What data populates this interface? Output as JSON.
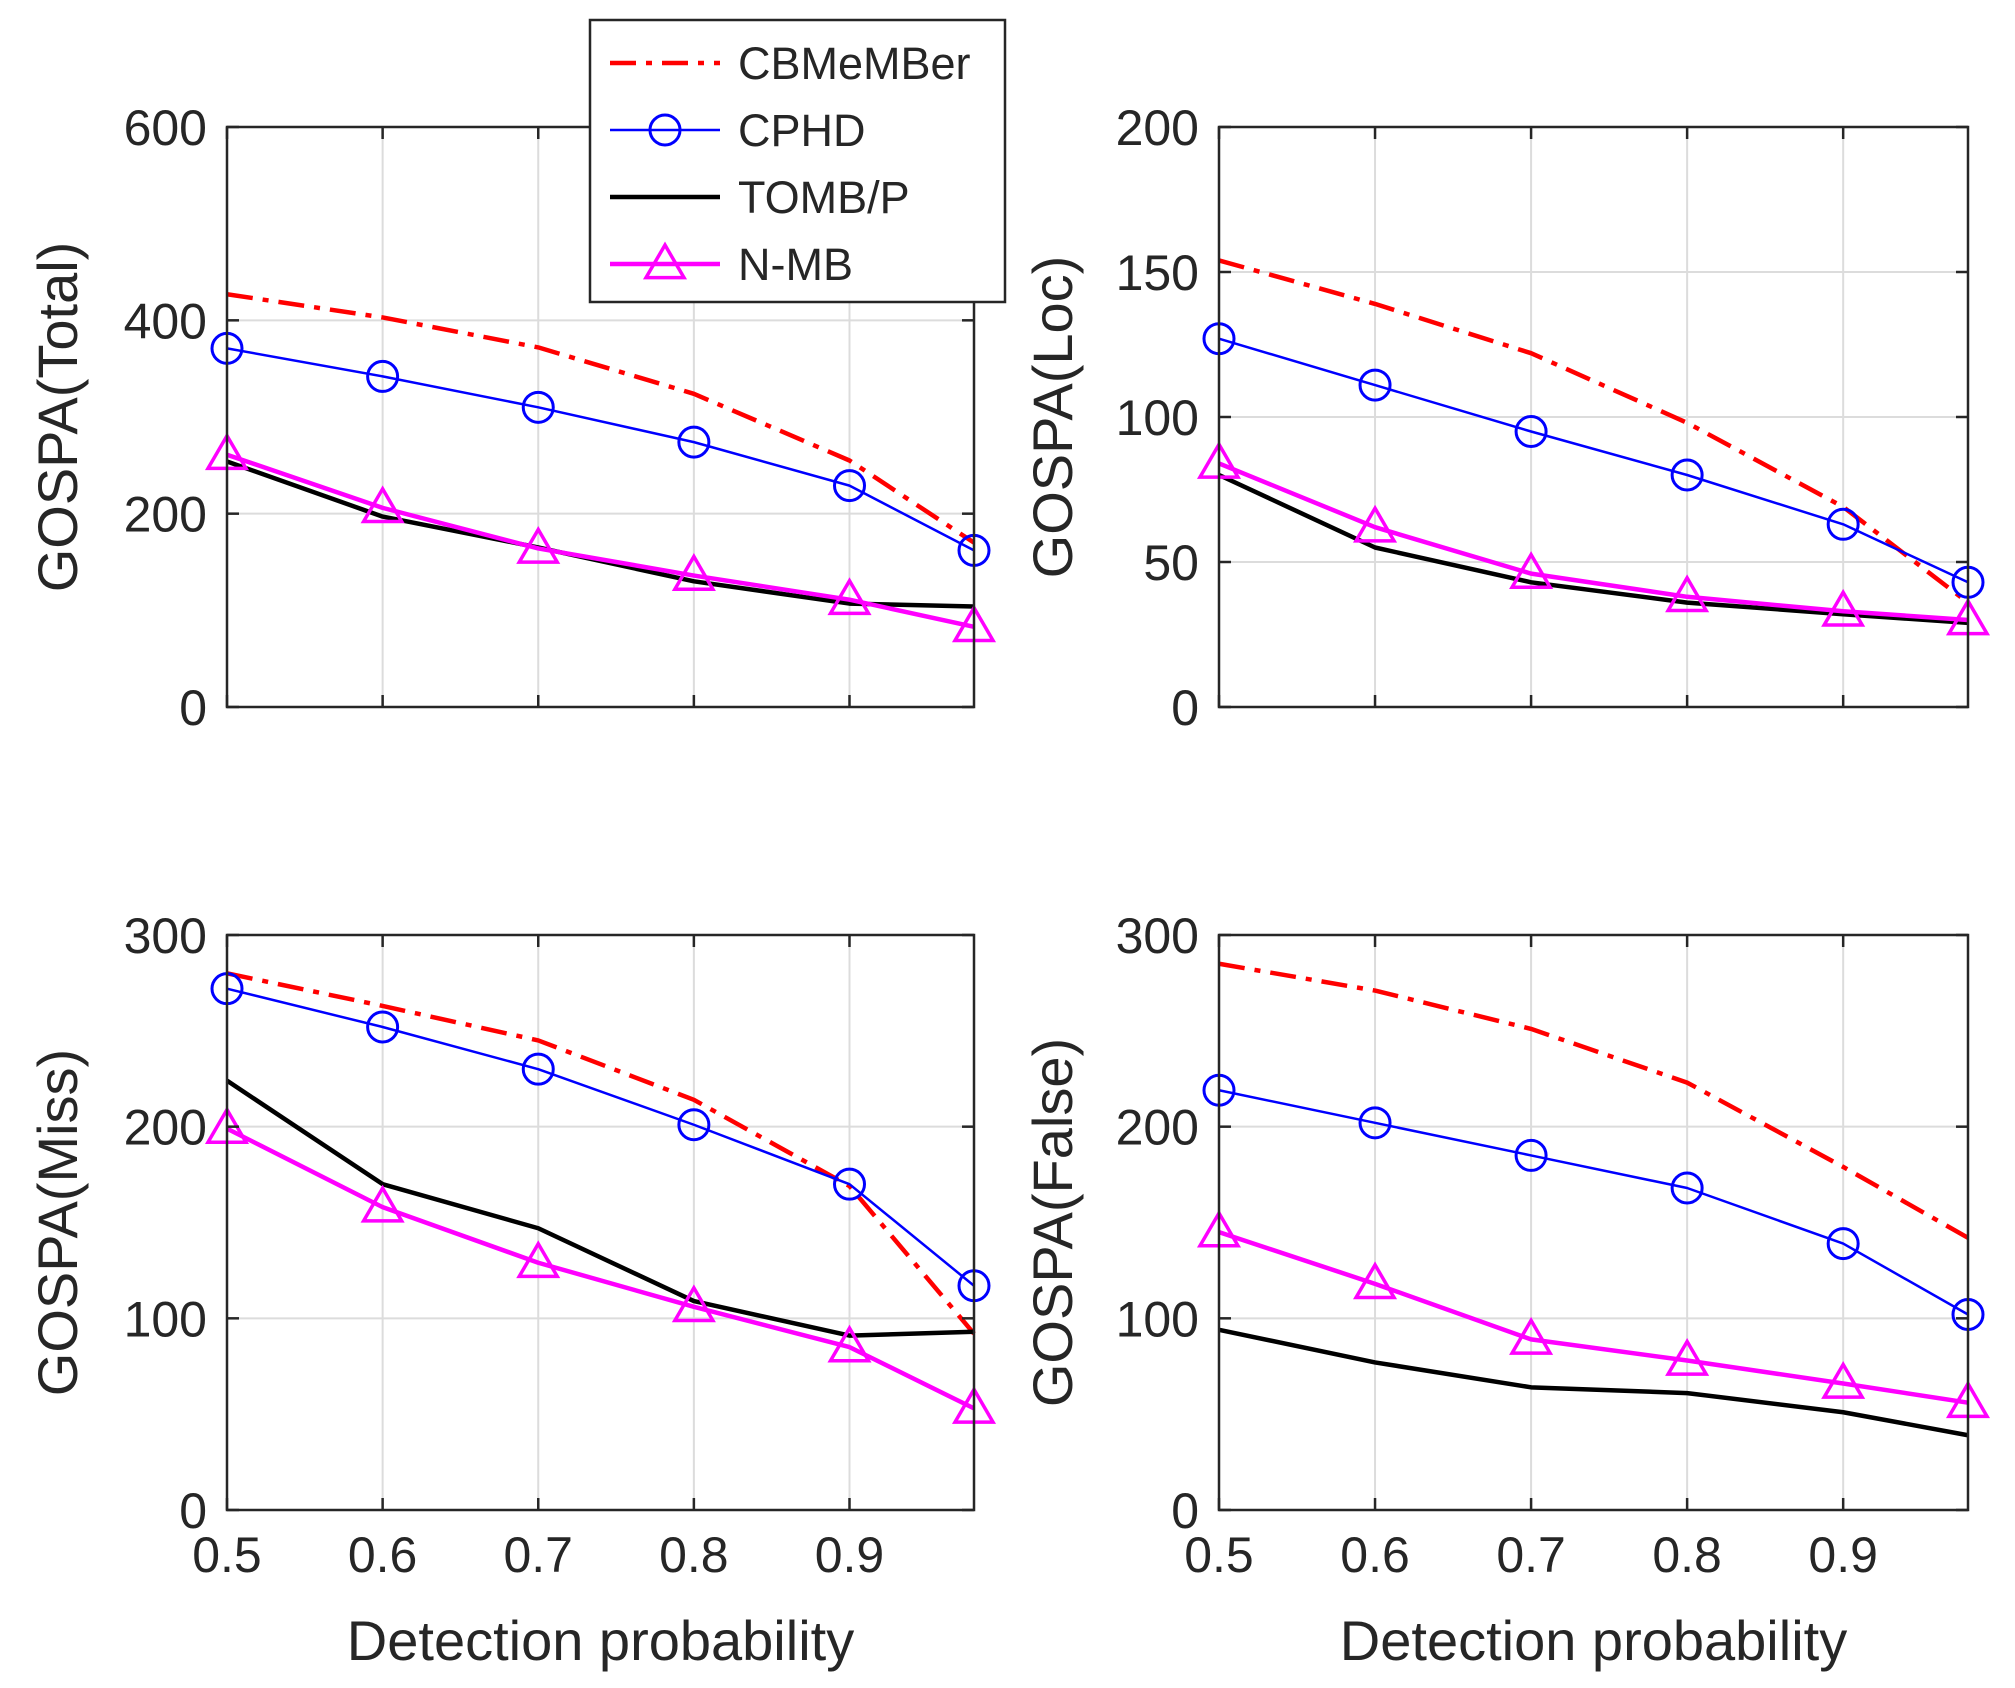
{
  "chart_data": [
    {
      "type": "line",
      "ylabel": "GOSPA(Total)",
      "xlabel": "",
      "x": [
        0.5,
        0.6,
        0.7,
        0.8,
        0.9,
        0.98
      ],
      "xlim": [
        0.5,
        0.98
      ],
      "ylim": [
        0,
        600
      ],
      "xticks": [
        0.5,
        0.6,
        0.7,
        0.8,
        0.9
      ],
      "xtick_labels": [],
      "yticks": [
        0,
        200,
        400,
        600
      ],
      "ytick_labels": [
        "0",
        "200",
        "400",
        "600"
      ],
      "grid": true,
      "series": [
        {
          "name": "CBMeMBer",
          "values": [
            427,
            403,
            372,
            324,
            255,
            170
          ]
        },
        {
          "name": "CPHD",
          "values": [
            371,
            342,
            310,
            274,
            229,
            162
          ]
        },
        {
          "name": "TOMB/P",
          "values": [
            254,
            197,
            165,
            130,
            107,
            104
          ]
        },
        {
          "name": "N-MB",
          "values": [
            261,
            206,
            164,
            136,
            111,
            83
          ]
        }
      ]
    },
    {
      "type": "line",
      "ylabel": "GOSPA(Loc)",
      "xlabel": "",
      "x": [
        0.5,
        0.6,
        0.7,
        0.8,
        0.9,
        0.98
      ],
      "xlim": [
        0.5,
        0.98
      ],
      "ylim": [
        0,
        200
      ],
      "xticks": [
        0.5,
        0.6,
        0.7,
        0.8,
        0.9
      ],
      "xtick_labels": [],
      "yticks": [
        0,
        50,
        100,
        150,
        200
      ],
      "ytick_labels": [
        "0",
        "50",
        "100",
        "150",
        "200"
      ],
      "grid": true,
      "series": [
        {
          "name": "CBMeMBer",
          "values": [
            154,
            139,
            122,
            98,
            69,
            36
          ]
        },
        {
          "name": "CPHD",
          "values": [
            127,
            111,
            95,
            80,
            63,
            43
          ]
        },
        {
          "name": "TOMB/P",
          "values": [
            80,
            55,
            43,
            36,
            32,
            29
          ]
        },
        {
          "name": "N-MB",
          "values": [
            84,
            62,
            46,
            38,
            33,
            30
          ]
        }
      ]
    },
    {
      "type": "line",
      "ylabel": "GOSPA(Miss)",
      "xlabel": "Detection probability",
      "x": [
        0.5,
        0.6,
        0.7,
        0.8,
        0.9,
        0.98
      ],
      "xlim": [
        0.5,
        0.98
      ],
      "ylim": [
        0,
        300
      ],
      "xticks": [
        0.5,
        0.6,
        0.7,
        0.8,
        0.9
      ],
      "xtick_labels": [
        "0.5",
        "0.6",
        "0.7",
        "0.8",
        "0.9"
      ],
      "yticks": [
        0,
        100,
        200,
        300
      ],
      "ytick_labels": [
        "0",
        "100",
        "200",
        "300"
      ],
      "grid": true,
      "series": [
        {
          "name": "CBMeMBer",
          "values": [
            280,
            263,
            245,
            214,
            169,
            92
          ]
        },
        {
          "name": "CPHD",
          "values": [
            272,
            252,
            230,
            201,
            170,
            117
          ]
        },
        {
          "name": "TOMB/P",
          "values": [
            224,
            170,
            147,
            109,
            91,
            93
          ]
        },
        {
          "name": "N-MB",
          "values": [
            199,
            158,
            129,
            106,
            85,
            53
          ]
        }
      ]
    },
    {
      "type": "line",
      "ylabel": "GOSPA(False)",
      "xlabel": "Detection probability",
      "x": [
        0.5,
        0.6,
        0.7,
        0.8,
        0.9,
        0.98
      ],
      "xlim": [
        0.5,
        0.98
      ],
      "ylim": [
        0,
        300
      ],
      "xticks": [
        0.5,
        0.6,
        0.7,
        0.8,
        0.9
      ],
      "xtick_labels": [
        "0.5",
        "0.6",
        "0.7",
        "0.8",
        "0.9"
      ],
      "yticks": [
        0,
        100,
        200,
        300
      ],
      "ytick_labels": [
        "0",
        "100",
        "200",
        "300"
      ],
      "grid": true,
      "series": [
        {
          "name": "CBMeMBer",
          "values": [
            285,
            271,
            251,
            223,
            179,
            142
          ]
        },
        {
          "name": "CPHD",
          "values": [
            219,
            202,
            185,
            168,
            139,
            102
          ]
        },
        {
          "name": "TOMB/P",
          "values": [
            94,
            77,
            64,
            61,
            51,
            39
          ]
        },
        {
          "name": "N-MB",
          "values": [
            145,
            118,
            89,
            78,
            66,
            56
          ]
        }
      ]
    }
  ],
  "legend": {
    "placement": "top-center",
    "entries": [
      {
        "name": "CBMeMBer",
        "color": "#ff0000",
        "style": "dash-dot",
        "marker": "none"
      },
      {
        "name": "CPHD",
        "color": "#0000ff",
        "style": "solid",
        "marker": "circle"
      },
      {
        "name": "TOMB/P",
        "color": "#000000",
        "style": "solid",
        "marker": "none"
      },
      {
        "name": "N-MB",
        "color": "#ff00ff",
        "style": "solid",
        "marker": "triangle"
      }
    ]
  }
}
